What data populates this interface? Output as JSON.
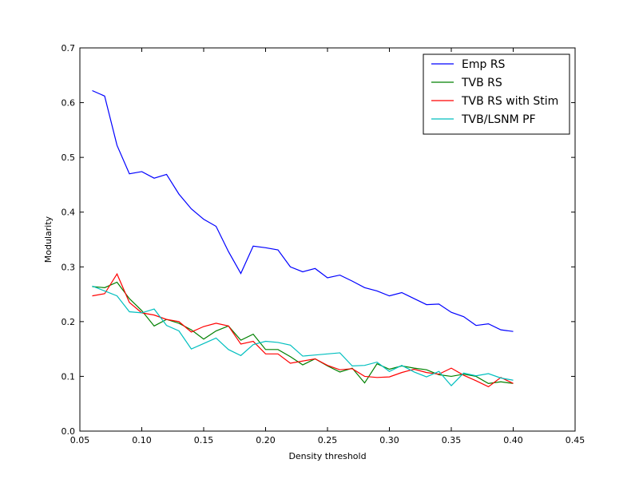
{
  "chart_data": {
    "type": "line",
    "title": "",
    "xlabel": "Density threshold",
    "ylabel": "Modularity",
    "xlim": [
      0.05,
      0.45
    ],
    "ylim": [
      0.0,
      0.7
    ],
    "xticks": [
      "0.05",
      "0.10",
      "0.15",
      "0.20",
      "0.25",
      "0.30",
      "0.35",
      "0.40",
      "0.45"
    ],
    "xtick_values": [
      0.05,
      0.1,
      0.15,
      0.2,
      0.25,
      0.3,
      0.35,
      0.4,
      0.45
    ],
    "yticks": [
      "0.0",
      "0.1",
      "0.2",
      "0.3",
      "0.4",
      "0.5",
      "0.6",
      "0.7"
    ],
    "ytick_values": [
      0.0,
      0.1,
      0.2,
      0.3,
      0.4,
      0.5,
      0.6,
      0.7
    ],
    "grid": false,
    "legend_position": "top-right",
    "x": [
      0.06,
      0.07,
      0.08,
      0.09,
      0.1,
      0.11,
      0.12,
      0.13,
      0.14,
      0.15,
      0.16,
      0.17,
      0.18,
      0.19,
      0.2,
      0.21,
      0.22,
      0.23,
      0.24,
      0.25,
      0.26,
      0.27,
      0.28,
      0.29,
      0.3,
      0.31,
      0.32,
      0.33,
      0.34,
      0.35,
      0.36,
      0.37,
      0.38,
      0.39,
      0.4
    ],
    "series": [
      {
        "name": "Emp RS",
        "color": "#0000ff",
        "values": [
          0.622,
          0.612,
          0.522,
          0.47,
          0.474,
          0.462,
          0.469,
          0.433,
          0.406,
          0.387,
          0.374,
          0.328,
          0.288,
          0.338,
          0.335,
          0.331,
          0.3,
          0.291,
          0.297,
          0.28,
          0.285,
          0.274,
          0.262,
          0.256,
          0.247,
          0.253,
          0.242,
          0.231,
          0.232,
          0.217,
          0.209,
          0.193,
          0.196,
          0.185,
          0.182
        ]
      },
      {
        "name": "TVB RS",
        "color": "#008000",
        "values": [
          0.264,
          0.262,
          0.272,
          0.242,
          0.22,
          0.192,
          0.204,
          0.197,
          0.185,
          0.168,
          0.183,
          0.192,
          0.166,
          0.177,
          0.149,
          0.149,
          0.136,
          0.121,
          0.132,
          0.119,
          0.108,
          0.115,
          0.088,
          0.123,
          0.113,
          0.119,
          0.115,
          0.112,
          0.103,
          0.1,
          0.104,
          0.1,
          0.087,
          0.09,
          0.087
        ]
      },
      {
        "name": "TVB RS with Stim",
        "color": "#ff0000",
        "values": [
          0.247,
          0.251,
          0.287,
          0.235,
          0.216,
          0.212,
          0.204,
          0.2,
          0.181,
          0.191,
          0.197,
          0.192,
          0.159,
          0.164,
          0.141,
          0.141,
          0.124,
          0.128,
          0.132,
          0.12,
          0.112,
          0.114,
          0.1,
          0.098,
          0.099,
          0.107,
          0.113,
          0.107,
          0.104,
          0.115,
          0.102,
          0.092,
          0.081,
          0.098,
          0.087
        ]
      },
      {
        "name": "TVB/LSNM PF",
        "color": "#00bfbf",
        "values": [
          0.265,
          0.256,
          0.247,
          0.218,
          0.216,
          0.223,
          0.193,
          0.183,
          0.15,
          0.16,
          0.17,
          0.149,
          0.138,
          0.158,
          0.164,
          0.162,
          0.157,
          0.137,
          0.139,
          0.141,
          0.143,
          0.119,
          0.12,
          0.126,
          0.109,
          0.12,
          0.108,
          0.099,
          0.109,
          0.083,
          0.106,
          0.101,
          0.105,
          0.097,
          0.093
        ]
      }
    ]
  }
}
